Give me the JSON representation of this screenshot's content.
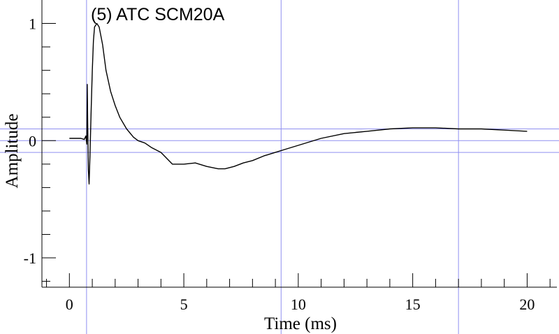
{
  "chart_data": {
    "type": "line",
    "title": "(5) ATC SCM20A",
    "xlabel": "Time (ms)",
    "ylabel": "Amplitude",
    "xlim": [
      -1.2,
      21.3
    ],
    "ylim": [
      -1.25,
      1.2
    ],
    "x_ticks": [
      0,
      5,
      10,
      15,
      20
    ],
    "x_tick_labels": [
      "0",
      "5",
      "10",
      "15",
      "20"
    ],
    "y_ticks": [
      1,
      0,
      -1
    ],
    "y_tick_labels": [
      "1",
      "0",
      "-1"
    ],
    "grid": false,
    "marker_lines": {
      "vertical_x": [
        0.75,
        9.25,
        17.0
      ],
      "horizontal_y": [
        0.1,
        0.0,
        -0.1
      ]
    },
    "series": [
      {
        "color": "#000000",
        "x": [
          0.0,
          0.5,
          0.65,
          0.72,
          0.76,
          0.78,
          0.8,
          0.83,
          0.86,
          0.9,
          0.95,
          1.0,
          1.05,
          1.1,
          1.2,
          1.3,
          1.45,
          1.6,
          1.8,
          2.0,
          2.2,
          2.5,
          2.8,
          3.0,
          3.3,
          3.6,
          4.0,
          4.5,
          5.0,
          5.5,
          6.0,
          6.5,
          6.8,
          7.2,
          7.6,
          8.0,
          8.5,
          9.0,
          9.5,
          10.0,
          11.0,
          12.0,
          13.0,
          14.0,
          15.0,
          16.0,
          17.0,
          18.0,
          19.0,
          20.0
        ],
        "y": [
          0.02,
          0.02,
          0.01,
          0.04,
          -0.03,
          0.48,
          0.15,
          -0.25,
          -0.37,
          -0.12,
          0.25,
          0.6,
          0.85,
          0.97,
          1.0,
          0.97,
          0.82,
          0.6,
          0.42,
          0.3,
          0.2,
          0.1,
          0.03,
          0.0,
          -0.02,
          -0.06,
          -0.1,
          -0.2,
          -0.2,
          -0.19,
          -0.22,
          -0.24,
          -0.24,
          -0.22,
          -0.19,
          -0.17,
          -0.13,
          -0.1,
          -0.07,
          -0.04,
          0.02,
          0.06,
          0.08,
          0.1,
          0.11,
          0.11,
          0.1,
          0.1,
          0.09,
          0.08
        ]
      }
    ]
  }
}
